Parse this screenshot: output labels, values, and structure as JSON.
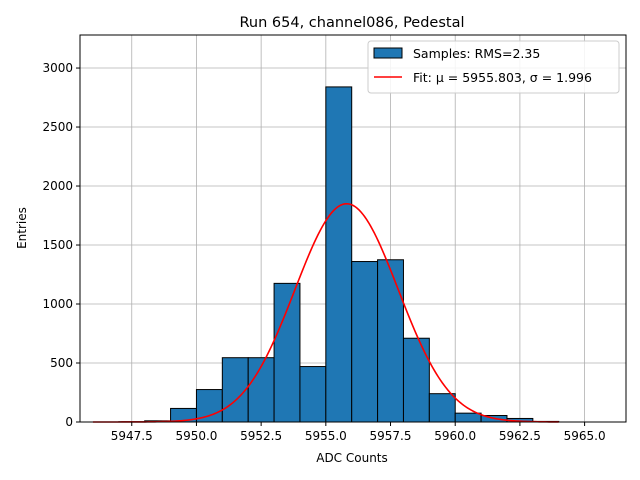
{
  "chart_data": {
    "type": "bar",
    "title": "Run 654, channel086, Pedestal",
    "xlabel": "ADC Counts",
    "ylabel": "Entries",
    "xlim": [
      5945.5,
      5966.6
    ],
    "ylim": [
      0,
      3280
    ],
    "grid": true,
    "legend_position": "top-right",
    "xticks": [
      5947.5,
      5950.0,
      5952.5,
      5955.0,
      5957.5,
      5960.0,
      5962.5,
      5965.0
    ],
    "xtick_labels": [
      "5947.5",
      "5950.0",
      "5952.5",
      "5955.0",
      "5957.5",
      "5960.0",
      "5962.5",
      "5965.0"
    ],
    "yticks": [
      0,
      500,
      1000,
      1500,
      2000,
      2500,
      3000
    ],
    "ytick_labels": [
      "0",
      "500",
      "1000",
      "1500",
      "2000",
      "2500",
      "3000"
    ],
    "histogram": {
      "name": "Samples: RMS=2.35",
      "color": "#1f77b4",
      "bin_edges": [
        5946,
        5947,
        5948,
        5949,
        5950,
        5951,
        5952,
        5953,
        5954,
        5955,
        5956,
        5957,
        5958,
        5959,
        5960,
        5961,
        5962,
        5963,
        5964,
        5965,
        5966
      ],
      "counts": [
        0,
        2,
        10,
        115,
        275,
        545,
        545,
        1175,
        470,
        2840,
        1360,
        1375,
        710,
        240,
        75,
        55,
        30,
        5,
        0,
        0
      ]
    },
    "fit": {
      "name": "Fit: μ = 5955.803, σ = 1.996",
      "color": "#ff0000",
      "mu": 5955.803,
      "sigma": 1.996,
      "amplitude": 1850,
      "x_range": [
        5946,
        5964
      ]
    },
    "legend": {
      "entries": [
        {
          "label": "Samples: RMS=2.35",
          "kind": "patch",
          "color": "#1f77b4"
        },
        {
          "label": "Fit: μ = 5955.803, σ = 1.996",
          "kind": "line",
          "color": "#ff0000"
        }
      ]
    }
  }
}
